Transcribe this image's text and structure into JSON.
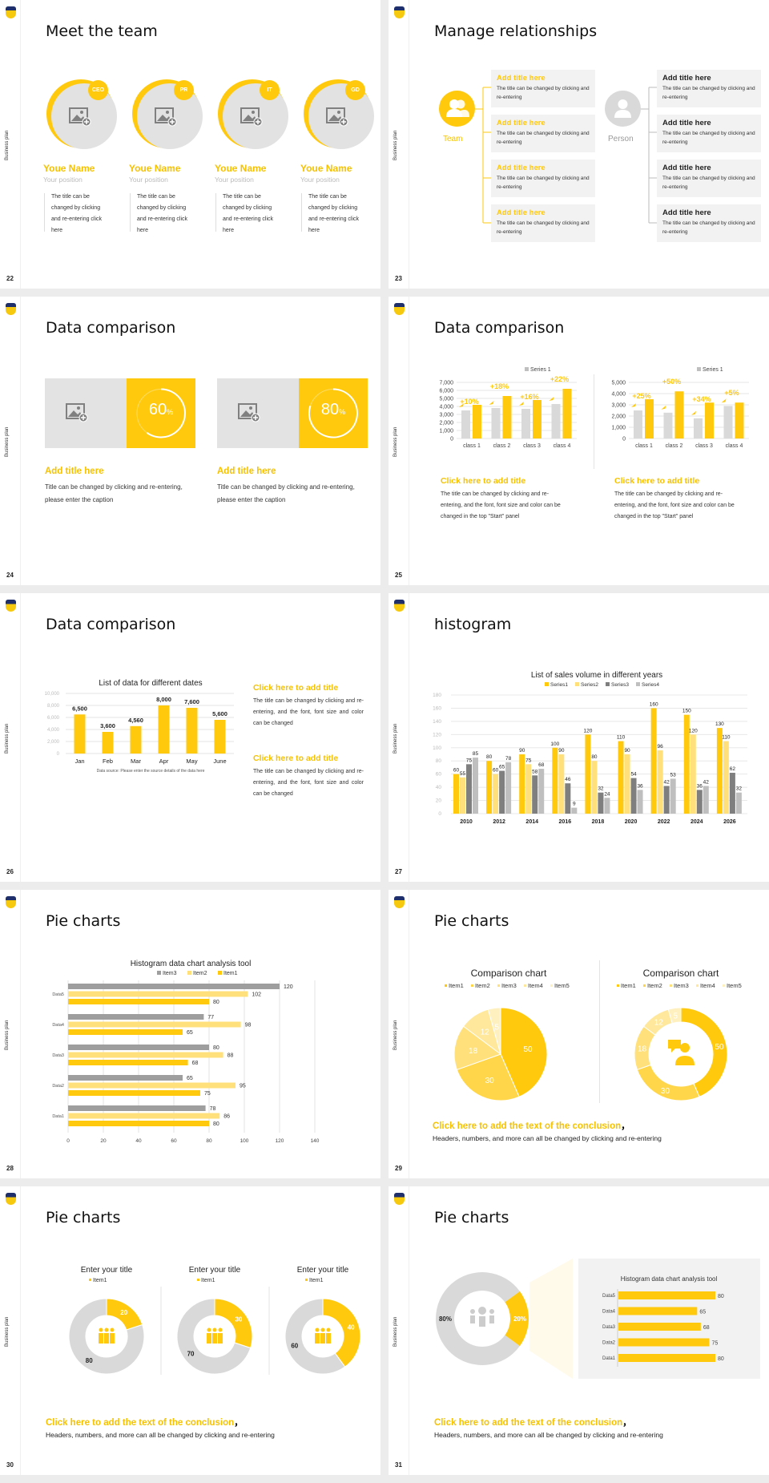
{
  "common": {
    "side_label": "Business plan",
    "accent": "#ffc90e",
    "gray": "#d9d9d9"
  },
  "slides": {
    "s22": {
      "page": "22",
      "title": "Meet the team",
      "members": [
        {
          "badge": "CEO",
          "name": "Youe Name",
          "position": "Your position",
          "desc": "The title can be changed by clicking and re-entering click here"
        },
        {
          "badge": "PR",
          "name": "Youe Name",
          "position": "Your position",
          "desc": "The title can be changed by clicking and re-entering click here"
        },
        {
          "badge": "IT",
          "name": "Youe Name",
          "position": "Your position",
          "desc": "The title can be changed by clicking and re-entering click here"
        },
        {
          "badge": "GD",
          "name": "Youe Name",
          "position": "Your position",
          "desc": "The title can be changed by clicking and re-entering click here"
        }
      ]
    },
    "s23": {
      "page": "23",
      "title": "Manage relationships",
      "team_label": "Team",
      "person_label": "Person",
      "team_items": [
        {
          "title": "Add title here",
          "desc": "The title can be changed by clicking and re-entering"
        },
        {
          "title": "Add title here",
          "desc": "The title can be changed by clicking and re-entering"
        },
        {
          "title": "Add title here",
          "desc": "The title can be changed by clicking and re-entering"
        },
        {
          "title": "Add title here",
          "desc": "The title can be changed by clicking and re-entering"
        }
      ],
      "person_items": [
        {
          "title": "Add title here",
          "desc": "The title can be changed by clicking and re-entering"
        },
        {
          "title": "Add title here",
          "desc": "The title can be changed by clicking and re-entering"
        },
        {
          "title": "Add title here",
          "desc": "The title can be changed by clicking and re-entering"
        },
        {
          "title": "Add title here",
          "desc": "The title can be changed by clicking and re-entering"
        }
      ]
    },
    "s24": {
      "page": "24",
      "title": "Data comparison",
      "cards": [
        {
          "value": "60",
          "unit": "%",
          "title": "Add title here",
          "desc": "Title can be changed by clicking and re-entering, please enter the caption"
        },
        {
          "value": "80",
          "unit": "%",
          "title": "Add title here",
          "desc": "Title can be changed by clicking and re-entering, please enter the caption"
        }
      ]
    },
    "s25": {
      "page": "25",
      "title": "Data comparison",
      "blocks": [
        {
          "title": "Click here to add title",
          "desc": "The title can be changed by clicking and re-entering, and the font, font size and color can be changed in the top \"Start\" panel"
        },
        {
          "title": "Click here to add title",
          "desc": "The title can be changed by clicking and re-entering, and the font, font size and color can be changed in the top \"Start\" panel"
        }
      ]
    },
    "s26": {
      "page": "26",
      "title": "Data comparison",
      "blocks": [
        {
          "title": "Click here to add title",
          "desc": "The title can be changed by clicking and re-entering, and the font, font size and color can be changed"
        },
        {
          "title": "Click here to add title",
          "desc": "The title can be changed by clicking and re-entering, and the font, font size and color can be changed"
        }
      ]
    },
    "s27": {
      "page": "27",
      "title": "histogram"
    },
    "s28": {
      "page": "28",
      "title": "Pie charts"
    },
    "s29": {
      "page": "29",
      "title": "Pie charts",
      "conclusion": "Click here to add the text of the conclusion",
      "comma": "，",
      "sub": "Headers, numbers, and more can all be changed by clicking and re-entering"
    },
    "s30": {
      "page": "30",
      "title": "Pie charts",
      "conclusion": "Click here to add the text of the conclusion",
      "comma": "，",
      "sub": "Headers, numbers, and more can all be changed by clicking and re-entering"
    },
    "s31": {
      "page": "31",
      "title": "Pie charts",
      "conclusion": "Click here to add the text of the conclusion",
      "comma": "，",
      "sub": "Headers, numbers, and more can all be changed by clicking and re-entering",
      "donut_labels": [
        "80%",
        "20%"
      ]
    }
  },
  "chart_data": [
    {
      "id": "s25-left",
      "type": "bar",
      "categories": [
        "class 1",
        "class 2",
        "class 3",
        "class 4"
      ],
      "series": [
        {
          "name": "Series 1",
          "values": [
            3500,
            3800,
            3700,
            4300
          ]
        },
        {
          "name": "Series 2",
          "values": [
            4200,
            5300,
            4800,
            6200
          ]
        }
      ],
      "annotations": [
        "+10%",
        "+18%",
        "+16%",
        "+22%"
      ],
      "ylim": [
        0,
        7000
      ],
      "yticks": [
        "7,000",
        "6,000",
        "5,000",
        "4,000",
        "3,000",
        "2,000",
        "1,000",
        "0"
      ],
      "legend": "Series 1"
    },
    {
      "id": "s25-right",
      "type": "bar",
      "categories": [
        "class 1",
        "class 2",
        "class 3",
        "class 4"
      ],
      "series": [
        {
          "name": "Series 1",
          "values": [
            2500,
            2300,
            1800,
            2900
          ]
        },
        {
          "name": "Series 2",
          "values": [
            3500,
            4200,
            3200,
            3200
          ]
        }
      ],
      "annotations": [
        "+25%",
        "+50%",
        "+34%",
        "+5%"
      ],
      "ylim": [
        0,
        5000
      ],
      "yticks": [
        "5,000",
        "4,000",
        "3,000",
        "2,000",
        "1,000",
        "0"
      ],
      "legend": "Series 1"
    },
    {
      "id": "s26",
      "type": "bar",
      "title": "List of data for different dates",
      "categories": [
        "Jan",
        "Feb",
        "Mar",
        "Apr",
        "May",
        "June"
      ],
      "values": [
        6500,
        3600,
        4560,
        8000,
        7600,
        5600
      ],
      "labels": [
        "6,500",
        "3,600",
        "4,560",
        "8,000",
        "7,600",
        "5,600"
      ],
      "ylim": [
        0,
        10000
      ],
      "yticks": [
        "10,000",
        "8,000",
        "6,000",
        "4,000",
        "2,000",
        "0"
      ],
      "footnote": "Data source: Please enter the source details of the data here"
    },
    {
      "id": "s27",
      "type": "bar",
      "title": "List of sales volume in different years",
      "categories": [
        "2010",
        "2012",
        "2014",
        "2016",
        "2018",
        "2020",
        "2022",
        "2024",
        "2026"
      ],
      "series": [
        {
          "name": "Series1",
          "values": [
            60,
            80,
            90,
            100,
            120,
            110,
            160,
            150,
            130
          ]
        },
        {
          "name": "Series2",
          "values": [
            55,
            60,
            75,
            90,
            80,
            90,
            96,
            120,
            110
          ]
        },
        {
          "name": "Series3",
          "values": [
            75,
            65,
            58,
            46,
            32,
            54,
            42,
            36,
            62
          ]
        },
        {
          "name": "Series4",
          "values": [
            85,
            78,
            68,
            9,
            24,
            36,
            53,
            42,
            32
          ]
        }
      ],
      "ylim": [
        0,
        180
      ],
      "yticks": [
        "180",
        "160",
        "140",
        "120",
        "100",
        "80",
        "60",
        "40",
        "20",
        "0"
      ]
    },
    {
      "id": "s28",
      "type": "bar",
      "orientation": "horizontal",
      "title": "Histogram data chart analysis tool",
      "categories": [
        "Data5",
        "Data4",
        "Data3",
        "Data2",
        "Data1"
      ],
      "series": [
        {
          "name": "Item3",
          "values": [
            120,
            77,
            80,
            65,
            78
          ]
        },
        {
          "name": "Item2",
          "values": [
            102,
            98,
            88,
            95,
            86
          ]
        },
        {
          "name": "Item1",
          "values": [
            80,
            65,
            68,
            75,
            80
          ]
        }
      ],
      "xlim": [
        0,
        140
      ],
      "xticks": [
        "0",
        "20",
        "40",
        "60",
        "80",
        "100",
        "120",
        "140"
      ]
    },
    {
      "id": "s29-pie",
      "type": "pie",
      "title": "Comparison chart",
      "categories": [
        "Item1",
        "Item2",
        "Item3",
        "Item4",
        "Item5"
      ],
      "values": [
        50,
        30,
        18,
        12,
        5
      ]
    },
    {
      "id": "s29-donut",
      "type": "pie",
      "title": "Comparison chart",
      "categories": [
        "Item1",
        "Item2",
        "Item3",
        "Item4",
        "Item5"
      ],
      "values": [
        50,
        30,
        18,
        12,
        5
      ]
    },
    {
      "id": "s30-1",
      "type": "pie",
      "title": "Enter your title",
      "legend": "Item1",
      "values": [
        20,
        80
      ]
    },
    {
      "id": "s30-2",
      "type": "pie",
      "title": "Enter your title",
      "legend": "Item1",
      "values": [
        30,
        70
      ]
    },
    {
      "id": "s30-3",
      "type": "pie",
      "title": "Enter your title",
      "legend": "Item1",
      "values": [
        40,
        60
      ]
    },
    {
      "id": "s31-donut",
      "type": "pie",
      "values": [
        20,
        80
      ],
      "labels": [
        "20%",
        "80%"
      ]
    },
    {
      "id": "s31-bars",
      "type": "bar",
      "orientation": "horizontal",
      "title": "Histogram data chart analysis tool",
      "categories": [
        "Data5",
        "Data4",
        "Data3",
        "Data2",
        "Data1"
      ],
      "values": [
        80,
        65,
        68,
        75,
        80
      ]
    }
  ]
}
